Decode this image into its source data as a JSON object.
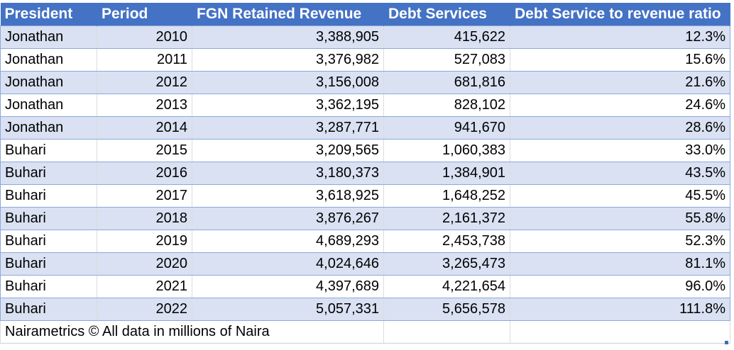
{
  "table": {
    "headers": [
      "President",
      "Period",
      "FGN Retained Revenue",
      "Debt Services",
      "Debt Service to revenue ratio"
    ],
    "rows": [
      [
        "Jonathan",
        "2010",
        "3,388,905",
        "415,622",
        "12.3%"
      ],
      [
        "Jonathan",
        "2011",
        "3,376,982",
        "527,083",
        "15.6%"
      ],
      [
        "Jonathan",
        "2012",
        "3,156,008",
        "681,816",
        "21.6%"
      ],
      [
        "Jonathan",
        "2013",
        "3,362,195",
        "828,102",
        "24.6%"
      ],
      [
        "Jonathan",
        "2014",
        "3,287,771",
        "941,670",
        "28.6%"
      ],
      [
        "Buhari",
        "2015",
        "3,209,565",
        "1,060,383",
        "33.0%"
      ],
      [
        "Buhari",
        "2016",
        "3,180,373",
        "1,384,901",
        "43.5%"
      ],
      [
        "Buhari",
        "2017",
        "3,618,925",
        "1,648,252",
        "45.5%"
      ],
      [
        "Buhari",
        "2018",
        "3,876,267",
        "2,161,372",
        "55.8%"
      ],
      [
        "Buhari",
        "2019",
        "4,689,293",
        "2,453,738",
        "52.3%"
      ],
      [
        "Buhari",
        "2020",
        "4,024,646",
        "3,265,473",
        "81.1%"
      ],
      [
        "Buhari",
        "2021",
        "4,397,689",
        "4,221,654",
        "96.0%"
      ],
      [
        "Buhari",
        "2022",
        "5,057,331",
        "5,656,578",
        "111.8%"
      ]
    ],
    "footer_note": "Nairametrics © All data in millions of Naira"
  },
  "colors": {
    "header_bg": "#4472c4",
    "header_text": "#ffffff",
    "band_bg": "#d9e1f2",
    "plain_bg": "#ffffff",
    "grid_line": "#8ea9db"
  }
}
